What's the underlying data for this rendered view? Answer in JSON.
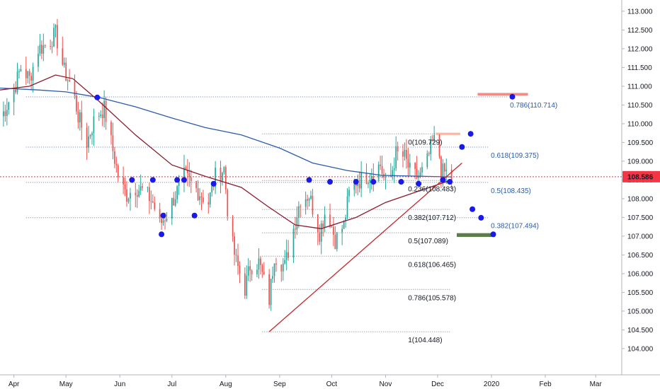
{
  "chart_data": {
    "type": "candlestick",
    "ylim": [
      103.3,
      113.3
    ],
    "x_range": [
      "2019-03-24",
      "2020-03-16"
    ],
    "y_ticks": [
      113.0,
      112.5,
      112.0,
      111.5,
      111.0,
      110.5,
      110.0,
      109.5,
      109.0,
      108.5,
      108.0,
      107.5,
      107.0,
      106.5,
      106.0,
      105.5,
      105.0,
      104.5,
      104.0
    ],
    "y_tick_labels": [
      "113.000",
      "112.500",
      "112.000",
      "111.500",
      "111.000",
      "110.500",
      "110.000",
      "109.500",
      "109.000",
      "108.500",
      "108.000",
      "107.500",
      "107.000",
      "106.500",
      "106.000",
      "105.500",
      "105.000",
      "104.500",
      "104.000"
    ],
    "x_ticks": [
      {
        "label": "Apr",
        "date": "2019-04-01"
      },
      {
        "label": "May",
        "date": "2019-05-01"
      },
      {
        "label": "Jun",
        "date": "2019-06-01"
      },
      {
        "label": "Jul",
        "date": "2019-07-01"
      },
      {
        "label": "Aug",
        "date": "2019-08-01"
      },
      {
        "label": "Sep",
        "date": "2019-09-01"
      },
      {
        "label": "Oct",
        "date": "2019-10-01"
      },
      {
        "label": "Nov",
        "date": "2019-11-01"
      },
      {
        "label": "Dec",
        "date": "2019-12-01"
      },
      {
        "label": "2020",
        "date": "2020-01-01"
      },
      {
        "label": "Feb",
        "date": "2020-02-01"
      },
      {
        "label": "Mar",
        "date": "2020-03-01"
      }
    ],
    "last_price": {
      "value": 108.586,
      "label": "108.586",
      "color": "#f23645"
    },
    "price_path": [
      [
        "2019-03-24",
        110.1
      ],
      [
        "2019-04-01",
        110.9
      ],
      [
        "2019-04-05",
        111.5
      ],
      [
        "2019-04-10",
        111.2
      ],
      [
        "2019-04-15",
        112.0
      ],
      [
        "2019-04-20",
        112.1
      ],
      [
        "2019-04-25",
        112.4
      ],
      [
        "2019-04-30",
        111.4
      ],
      [
        "2019-05-05",
        110.9
      ],
      [
        "2019-05-08",
        110.2
      ],
      [
        "2019-05-13",
        109.5
      ],
      [
        "2019-05-18",
        110.2
      ],
      [
        "2019-05-23",
        110.4
      ],
      [
        "2019-05-27",
        109.5
      ],
      [
        "2019-06-01",
        108.4
      ],
      [
        "2019-06-05",
        108.1
      ],
      [
        "2019-06-10",
        108.3
      ],
      [
        "2019-06-15",
        108.2
      ],
      [
        "2019-06-20",
        107.9
      ],
      [
        "2019-06-24",
        107.3
      ],
      [
        "2019-06-28",
        107.6
      ],
      [
        "2019-07-02",
        108.0
      ],
      [
        "2019-07-08",
        108.6
      ],
      [
        "2019-07-12",
        108.4
      ],
      [
        "2019-07-18",
        108.1
      ],
      [
        "2019-07-22",
        107.9
      ],
      [
        "2019-07-26",
        108.6
      ],
      [
        "2019-07-31",
        108.8
      ],
      [
        "2019-08-03",
        107.2
      ],
      [
        "2019-08-07",
        106.3
      ],
      [
        "2019-08-12",
        105.6
      ],
      [
        "2019-08-15",
        106.2
      ],
      [
        "2019-08-20",
        106.3
      ],
      [
        "2019-08-26",
        105.3
      ],
      [
        "2019-08-29",
        106.5
      ],
      [
        "2019-09-04",
        106.2
      ],
      [
        "2019-09-09",
        107.2
      ],
      [
        "2019-09-13",
        108.0
      ],
      [
        "2019-09-18",
        108.1
      ],
      [
        "2019-09-24",
        107.1
      ],
      [
        "2019-09-28",
        107.8
      ],
      [
        "2019-10-03",
        106.9
      ],
      [
        "2019-10-08",
        107.3
      ],
      [
        "2019-10-12",
        108.4
      ],
      [
        "2019-10-18",
        108.5
      ],
      [
        "2019-10-24",
        108.7
      ],
      [
        "2019-10-29",
        108.9
      ],
      [
        "2019-11-02",
        108.2
      ],
      [
        "2019-11-07",
        109.2
      ],
      [
        "2019-11-12",
        109.1
      ],
      [
        "2019-11-16",
        108.6
      ],
      [
        "2019-11-21",
        108.6
      ],
      [
        "2019-11-25",
        109.0
      ],
      [
        "2019-11-28",
        109.5
      ],
      [
        "2019-12-01",
        109.6
      ],
      [
        "2019-12-03",
        108.7
      ],
      [
        "2019-12-06",
        108.7
      ],
      [
        "2019-12-09",
        108.5
      ]
    ],
    "series": [
      {
        "color": "#2a5caa",
        "values": [
          [
            "2019-03-24",
            110.95
          ],
          [
            "2019-04-15",
            110.9
          ],
          [
            "2019-05-01",
            110.85
          ],
          [
            "2019-05-20",
            110.7
          ],
          [
            "2019-06-10",
            110.45
          ],
          [
            "2019-07-01",
            110.15
          ],
          [
            "2019-07-20",
            109.9
          ],
          [
            "2019-08-10",
            109.7
          ],
          [
            "2019-09-01",
            109.35
          ],
          [
            "2019-09-20",
            108.95
          ],
          [
            "2019-10-10",
            108.75
          ],
          [
            "2019-10-30",
            108.62
          ],
          [
            "2019-11-20",
            108.6
          ],
          [
            "2019-12-09",
            108.58
          ]
        ]
      },
      {
        "color": "#8b1a2b",
        "values": [
          [
            "2019-03-24",
            110.9
          ],
          [
            "2019-04-10",
            111.0
          ],
          [
            "2019-04-25",
            111.3
          ],
          [
            "2019-05-05",
            111.2
          ],
          [
            "2019-05-20",
            110.6
          ],
          [
            "2019-06-10",
            109.7
          ],
          [
            "2019-07-01",
            108.9
          ],
          [
            "2019-07-20",
            108.6
          ],
          [
            "2019-08-10",
            108.3
          ],
          [
            "2019-08-25",
            107.8
          ],
          [
            "2019-09-10",
            107.3
          ],
          [
            "2019-09-25",
            107.2
          ],
          [
            "2019-10-15",
            107.5
          ],
          [
            "2019-11-01",
            107.9
          ],
          [
            "2019-11-20",
            108.2
          ],
          [
            "2019-12-09",
            108.5
          ]
        ]
      }
    ],
    "trendline": {
      "from": [
        "2019-08-26",
        104.45
      ],
      "to": [
        "2019-12-15",
        108.95
      ],
      "color": "#c62828"
    },
    "fib_levels": [
      {
        "value": 109.729,
        "label": "0(109.729)",
        "from": "2019-08-22",
        "to": "2019-12-08",
        "color": "#131722"
      },
      {
        "value": 108.483,
        "label": "0.236(108.483)",
        "from": "2019-08-22",
        "to": "2019-12-08",
        "color": "#131722"
      },
      {
        "value": 107.712,
        "label": "0.382(107.712)",
        "from": "2019-08-22",
        "to": "2019-12-08",
        "color": "#131722"
      },
      {
        "value": 107.089,
        "label": "0.5(107.089)",
        "from": "2019-08-22",
        "to": "2019-12-08",
        "color": "#131722"
      },
      {
        "value": 106.465,
        "label": "0.618(106.465)",
        "from": "2019-08-22",
        "to": "2019-12-08",
        "color": "#131722"
      },
      {
        "value": 105.578,
        "label": "0.786(105.578)",
        "from": "2019-08-22",
        "to": "2019-12-08",
        "color": "#131722"
      },
      {
        "value": 104.448,
        "label": "1(104.448)",
        "from": "2019-08-22",
        "to": "2019-12-08",
        "color": "#131722"
      },
      {
        "value": 110.714,
        "label": "0.786(110.714)",
        "from": "2019-04-08",
        "to": "2020-01-10",
        "color": "#2a5caa"
      },
      {
        "value": 109.375,
        "label": "0.618(109.375)",
        "from": "2019-04-08",
        "to": "2019-12-30",
        "color": "#2a5caa"
      },
      {
        "value": 108.435,
        "label": "0.5(108.435)",
        "from": "2019-04-08",
        "to": "2019-12-30",
        "color": "#2a5caa"
      },
      {
        "value": 107.494,
        "label": "0.382(107.494)",
        "from": "2019-04-08",
        "to": "2019-12-30",
        "color": "#2a5caa"
      }
    ],
    "zones": [
      {
        "from": "2019-12-24",
        "to": "2020-01-22",
        "y1": 110.75,
        "y2": 110.82,
        "color": "#f28b82"
      },
      {
        "from": "2019-11-30",
        "to": "2019-12-14",
        "y1": 109.7,
        "y2": 109.76,
        "color": "#f7b7a3"
      },
      {
        "from": "2019-12-12",
        "to": "2020-01-03",
        "y1": 106.98,
        "y2": 107.08,
        "color": "#5c7d4a"
      }
    ],
    "markers": [
      [
        "2019-05-19",
        110.7
      ],
      [
        "2019-06-08",
        108.5
      ],
      [
        "2019-06-20",
        108.5
      ],
      [
        "2019-07-04",
        108.5
      ],
      [
        "2019-07-08",
        108.5
      ],
      [
        "2019-07-25",
        108.4
      ],
      [
        "2019-06-25",
        107.05
      ],
      [
        "2019-06-26",
        107.55
      ],
      [
        "2019-07-14",
        107.55
      ],
      [
        "2019-09-18",
        108.5
      ],
      [
        "2019-09-30",
        108.45
      ],
      [
        "2019-10-15",
        108.45
      ],
      [
        "2019-10-25",
        108.45
      ],
      [
        "2019-11-10",
        108.45
      ],
      [
        "2019-11-20",
        108.4
      ],
      [
        "2019-12-04",
        108.5
      ],
      [
        "2019-12-08",
        108.45
      ],
      [
        "2019-12-15",
        109.38
      ],
      [
        "2019-12-21",
        107.72
      ],
      [
        "2019-12-26",
        107.49
      ],
      [
        "2020-01-02",
        107.05
      ],
      [
        "2020-01-13",
        110.72
      ],
      [
        "2019-12-20",
        109.73
      ]
    ]
  }
}
